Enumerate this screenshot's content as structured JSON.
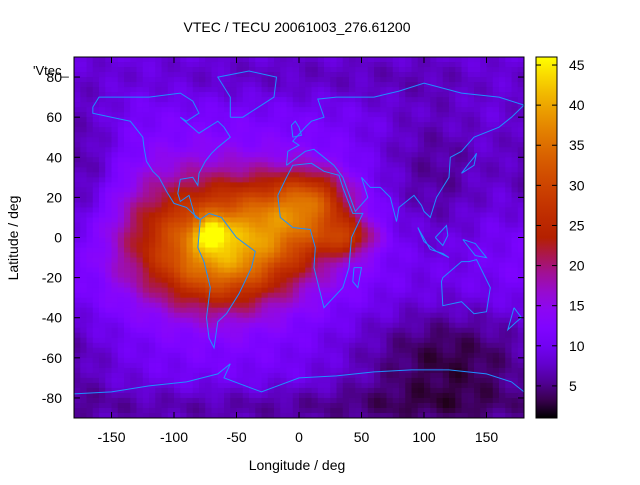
{
  "chart_data": {
    "type": "heatmap",
    "title": "VTEC / TECU 20061003_276.61200",
    "xlabel": "Longitude / deg",
    "ylabel": "Latitude / deg",
    "xlim": [
      -180,
      180
    ],
    "ylim": [
      -90,
      90
    ],
    "x_ticks": [
      -150,
      -100,
      -50,
      0,
      50,
      100,
      150
    ],
    "y_ticks": [
      -80,
      -60,
      -40,
      -20,
      0,
      20,
      40,
      60,
      80
    ],
    "colorbar": {
      "range": [
        1,
        46
      ],
      "ticks": [
        5,
        10,
        15,
        20,
        25,
        30,
        35,
        40,
        45
      ]
    },
    "legend_entry": "'Vtec_",
    "background_level": 10,
    "blobs": [
      {
        "lon": -70,
        "lat": 0,
        "sigma_lon": 50,
        "sigma_lat": 22,
        "amp": 20
      },
      {
        "lon": -60,
        "lat": -15,
        "sigma_lon": 35,
        "sigma_lat": 15,
        "amp": 10
      },
      {
        "lon": -5,
        "lat": 8,
        "sigma_lon": 35,
        "sigma_lat": 15,
        "amp": 13
      },
      {
        "lon": 10,
        "lat": 20,
        "sigma_lon": 20,
        "sigma_lat": 10,
        "amp": 10
      },
      {
        "lon": 40,
        "lat": 0,
        "sigma_lon": 15,
        "sigma_lat": 6,
        "amp": 10
      },
      {
        "lon": -70,
        "lat": 2,
        "sigma_lon": 8,
        "sigma_lat": 5,
        "amp": 12
      }
    ],
    "dark_zones": [
      {
        "lon": 120,
        "lat": -60,
        "sigma_lon": 60,
        "sigma_lat": 20,
        "amp": -8
      },
      {
        "lon": 110,
        "lat": 30,
        "sigma_lon": 40,
        "sigma_lat": 30,
        "amp": -6
      },
      {
        "lon": -170,
        "lat": 30,
        "sigma_lon": 20,
        "sigma_lat": 30,
        "amp": -5
      },
      {
        "lon": 0,
        "lat": 80,
        "sigma_lon": 120,
        "sigma_lat": 10,
        "amp": -3
      },
      {
        "lon": 0,
        "lat": -85,
        "sigma_lon": 200,
        "sigma_lat": 8,
        "amp": -4
      }
    ],
    "coastlines": [
      {
        "name": "north-america",
        "points": [
          [
            -165,
            65
          ],
          [
            -160,
            70
          ],
          [
            -140,
            70
          ],
          [
            -120,
            70
          ],
          [
            -95,
            72
          ],
          [
            -85,
            68
          ],
          [
            -80,
            62
          ],
          [
            -90,
            58
          ],
          [
            -95,
            60
          ],
          [
            -80,
            52
          ],
          [
            -65,
            58
          ],
          [
            -60,
            55
          ],
          [
            -55,
            50
          ],
          [
            -65,
            45
          ],
          [
            -70,
            42
          ],
          [
            -75,
            38
          ],
          [
            -80,
            32
          ],
          [
            -81,
            26
          ],
          [
            -85,
            30
          ],
          [
            -95,
            29
          ],
          [
            -97,
            22
          ],
          [
            -95,
            18
          ],
          [
            -88,
            21
          ],
          [
            -83,
            10
          ],
          [
            -79,
            9
          ],
          [
            -85,
            12
          ],
          [
            -90,
            15
          ],
          [
            -100,
            17
          ],
          [
            -106,
            23
          ],
          [
            -112,
            30
          ],
          [
            -117,
            33
          ],
          [
            -122,
            38
          ],
          [
            -124,
            45
          ],
          [
            -125,
            50
          ],
          [
            -135,
            58
          ],
          [
            -150,
            60
          ],
          [
            -165,
            62
          ],
          [
            -165,
            65
          ]
        ]
      },
      {
        "name": "south-america",
        "points": [
          [
            -79,
            9
          ],
          [
            -72,
            12
          ],
          [
            -62,
            10
          ],
          [
            -50,
            0
          ],
          [
            -35,
            -7
          ],
          [
            -38,
            -15
          ],
          [
            -48,
            -28
          ],
          [
            -58,
            -38
          ],
          [
            -65,
            -42
          ],
          [
            -68,
            -55
          ],
          [
            -72,
            -50
          ],
          [
            -74,
            -40
          ],
          [
            -71,
            -25
          ],
          [
            -76,
            -12
          ],
          [
            -81,
            -5
          ],
          [
            -80,
            1
          ],
          [
            -79,
            9
          ]
        ]
      },
      {
        "name": "africa",
        "points": [
          [
            -17,
            21
          ],
          [
            -10,
            30
          ],
          [
            -5,
            36
          ],
          [
            10,
            37
          ],
          [
            20,
            33
          ],
          [
            32,
            31
          ],
          [
            35,
            25
          ],
          [
            43,
            12
          ],
          [
            51,
            12
          ],
          [
            42,
            0
          ],
          [
            40,
            -15
          ],
          [
            35,
            -25
          ],
          [
            20,
            -35
          ],
          [
            18,
            -30
          ],
          [
            12,
            -15
          ],
          [
            13,
            -5
          ],
          [
            9,
            4
          ],
          [
            -5,
            5
          ],
          [
            -15,
            10
          ],
          [
            -17,
            21
          ]
        ]
      },
      {
        "name": "eurasia",
        "points": [
          [
            -10,
            36
          ],
          [
            -9,
            43
          ],
          [
            0,
            46
          ],
          [
            -5,
            48
          ],
          [
            5,
            55
          ],
          [
            10,
            58
          ],
          [
            20,
            60
          ],
          [
            15,
            69
          ],
          [
            30,
            70
          ],
          [
            60,
            70
          ],
          [
            80,
            73
          ],
          [
            100,
            77
          ],
          [
            130,
            72
          ],
          [
            160,
            70
          ],
          [
            180,
            66
          ],
          [
            170,
            60
          ],
          [
            160,
            55
          ],
          [
            140,
            50
          ],
          [
            130,
            43
          ],
          [
            121,
            40
          ],
          [
            120,
            30
          ],
          [
            110,
            20
          ],
          [
            105,
            10
          ],
          [
            100,
            13
          ],
          [
            98,
            16
          ],
          [
            92,
            21
          ],
          [
            80,
            15
          ],
          [
            78,
            8
          ],
          [
            73,
            20
          ],
          [
            65,
            25
          ],
          [
            57,
            25
          ],
          [
            50,
            30
          ],
          [
            55,
            20
          ],
          [
            45,
            13
          ],
          [
            35,
            30
          ],
          [
            28,
            36
          ],
          [
            20,
            40
          ],
          [
            12,
            44
          ],
          [
            5,
            43
          ],
          [
            -10,
            36
          ]
        ]
      },
      {
        "name": "australia",
        "points": [
          [
            115,
            -20
          ],
          [
            130,
            -12
          ],
          [
            136,
            -12
          ],
          [
            142,
            -11
          ],
          [
            153,
            -25
          ],
          [
            150,
            -37
          ],
          [
            140,
            -38
          ],
          [
            130,
            -32
          ],
          [
            115,
            -34
          ],
          [
            114,
            -22
          ],
          [
            115,
            -20
          ]
        ]
      },
      {
        "name": "greenland",
        "points": [
          [
            -55,
            60
          ],
          [
            -45,
            60
          ],
          [
            -20,
            70
          ],
          [
            -18,
            80
          ],
          [
            -40,
            83
          ],
          [
            -65,
            80
          ],
          [
            -55,
            70
          ],
          [
            -55,
            60
          ]
        ]
      },
      {
        "name": "antarctica",
        "points": [
          [
            -180,
            -78
          ],
          [
            -150,
            -77
          ],
          [
            -120,
            -74
          ],
          [
            -90,
            -72
          ],
          [
            -65,
            -68
          ],
          [
            -55,
            -63
          ],
          [
            -60,
            -70
          ],
          [
            -30,
            -77
          ],
          [
            0,
            -70
          ],
          [
            30,
            -69
          ],
          [
            60,
            -67
          ],
          [
            90,
            -66
          ],
          [
            120,
            -66
          ],
          [
            150,
            -68
          ],
          [
            170,
            -72
          ],
          [
            180,
            -77
          ]
        ]
      },
      {
        "name": "uk",
        "points": [
          [
            -5,
            50
          ],
          [
            2,
            51
          ],
          [
            0,
            55
          ],
          [
            -3,
            58
          ],
          [
            -6,
            56
          ],
          [
            -5,
            50
          ]
        ]
      },
      {
        "name": "japan",
        "points": [
          [
            130,
            32
          ],
          [
            135,
            34
          ],
          [
            140,
            36
          ],
          [
            142,
            42
          ],
          [
            140,
            40
          ],
          [
            136,
            37
          ],
          [
            130,
            32
          ]
        ]
      },
      {
        "name": "indonesia",
        "points": [
          [
            95,
            5
          ],
          [
            105,
            -6
          ],
          [
            115,
            -8
          ],
          [
            120,
            -10
          ],
          [
            110,
            -7
          ],
          [
            100,
            -2
          ],
          [
            95,
            5
          ]
        ]
      },
      {
        "name": "new-zealand",
        "points": [
          [
            172,
            -35
          ],
          [
            178,
            -40
          ],
          [
            174,
            -42
          ],
          [
            167,
            -46
          ],
          [
            172,
            -35
          ]
        ]
      },
      {
        "name": "madagascar",
        "points": [
          [
            44,
            -15
          ],
          [
            50,
            -15
          ],
          [
            47,
            -25
          ],
          [
            43,
            -22
          ],
          [
            44,
            -15
          ]
        ]
      },
      {
        "name": "borneo",
        "points": [
          [
            109,
            0
          ],
          [
            118,
            6
          ],
          [
            119,
            1
          ],
          [
            115,
            -4
          ],
          [
            109,
            0
          ]
        ]
      },
      {
        "name": "new-guinea",
        "points": [
          [
            131,
            -1
          ],
          [
            141,
            -3
          ],
          [
            150,
            -10
          ],
          [
            141,
            -9
          ],
          [
            131,
            -1
          ]
        ]
      }
    ]
  }
}
